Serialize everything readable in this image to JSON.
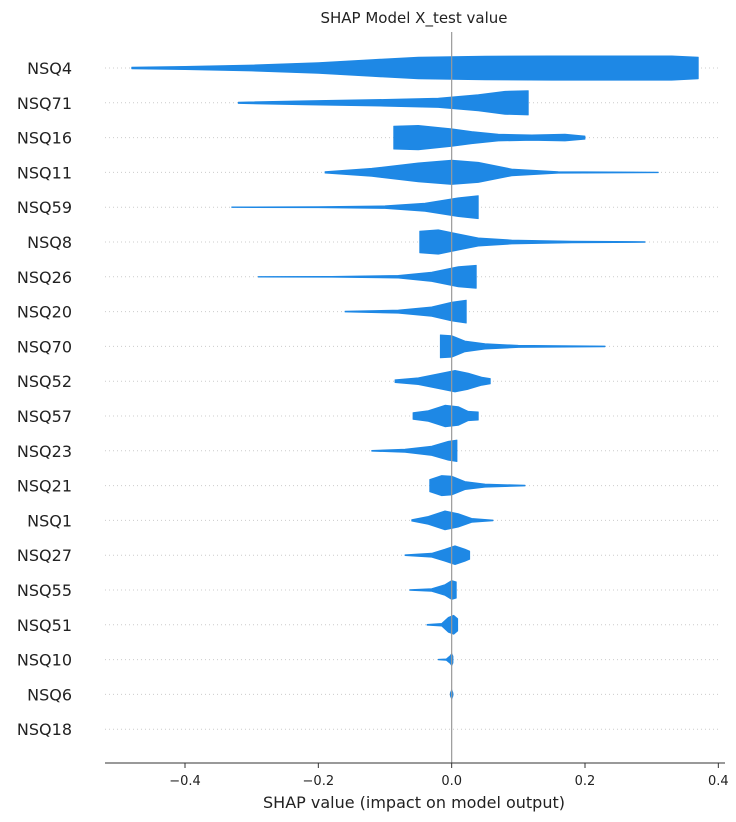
{
  "chart_data": {
    "type": "violin",
    "title": "SHAP Model X_test value",
    "xlabel": "SHAP value (impact on model output)",
    "ylabel": "",
    "xlim": [
      -0.52,
      0.41
    ],
    "xticks": [
      -0.4,
      -0.2,
      0.0,
      0.2,
      0.4
    ],
    "xtick_labels": [
      "−0.4",
      "−0.2",
      "0.0",
      "0.2",
      "0.4"
    ],
    "grid": "dotted horizontal lines",
    "colors": {
      "violin": "#1E88E5",
      "zero_line": "#999999",
      "axis": "#333333"
    },
    "features": [
      {
        "name": "NSQ4",
        "min": -0.48,
        "max": 0.37,
        "profile": [
          [
            -0.48,
            0.06
          ],
          [
            -0.4,
            0.12
          ],
          [
            -0.3,
            0.22
          ],
          [
            -0.2,
            0.4
          ],
          [
            -0.12,
            0.62
          ],
          [
            -0.05,
            0.8
          ],
          [
            0.05,
            0.88
          ],
          [
            0.15,
            0.9
          ],
          [
            0.25,
            0.9
          ],
          [
            0.33,
            0.9
          ],
          [
            0.37,
            0.8
          ]
        ]
      },
      {
        "name": "NSQ71",
        "min": -0.32,
        "max": 0.115,
        "profile": [
          [
            -0.32,
            0.05
          ],
          [
            -0.22,
            0.15
          ],
          [
            -0.1,
            0.25
          ],
          [
            -0.02,
            0.35
          ],
          [
            0.04,
            0.6
          ],
          [
            0.08,
            0.85
          ],
          [
            0.115,
            0.9
          ]
        ]
      },
      {
        "name": "NSQ16",
        "min": -0.087,
        "max": 0.2,
        "profile": [
          [
            -0.087,
            0.85
          ],
          [
            -0.05,
            0.9
          ],
          [
            0.0,
            0.65
          ],
          [
            0.03,
            0.45
          ],
          [
            0.07,
            0.25
          ],
          [
            0.12,
            0.2
          ],
          [
            0.17,
            0.25
          ],
          [
            0.2,
            0.12
          ]
        ]
      },
      {
        "name": "NSQ11",
        "min": -0.19,
        "max": 0.31,
        "profile": [
          [
            -0.19,
            0.05
          ],
          [
            -0.12,
            0.3
          ],
          [
            -0.05,
            0.7
          ],
          [
            0.0,
            0.9
          ],
          [
            0.04,
            0.75
          ],
          [
            0.09,
            0.25
          ],
          [
            0.16,
            0.06
          ],
          [
            0.31,
            0.02
          ]
        ]
      },
      {
        "name": "NSQ59",
        "min": -0.33,
        "max": 0.04,
        "profile": [
          [
            -0.33,
            0.02
          ],
          [
            -0.2,
            0.04
          ],
          [
            -0.1,
            0.1
          ],
          [
            -0.04,
            0.3
          ],
          [
            0.01,
            0.7
          ],
          [
            0.04,
            0.85
          ]
        ]
      },
      {
        "name": "NSQ8",
        "min": -0.048,
        "max": 0.29,
        "profile": [
          [
            -0.048,
            0.8
          ],
          [
            -0.02,
            0.9
          ],
          [
            0.01,
            0.6
          ],
          [
            0.04,
            0.3
          ],
          [
            0.09,
            0.15
          ],
          [
            0.18,
            0.06
          ],
          [
            0.29,
            0.03
          ]
        ]
      },
      {
        "name": "NSQ26",
        "min": -0.29,
        "max": 0.037,
        "profile": [
          [
            -0.29,
            0.02
          ],
          [
            -0.18,
            0.03
          ],
          [
            -0.08,
            0.1
          ],
          [
            -0.03,
            0.35
          ],
          [
            0.01,
            0.75
          ],
          [
            0.037,
            0.85
          ]
        ]
      },
      {
        "name": "NSQ20",
        "min": -0.16,
        "max": 0.022,
        "profile": [
          [
            -0.16,
            0.03
          ],
          [
            -0.08,
            0.12
          ],
          [
            -0.03,
            0.35
          ],
          [
            0.0,
            0.7
          ],
          [
            0.022,
            0.85
          ]
        ]
      },
      {
        "name": "NSQ70",
        "min": -0.017,
        "max": 0.23,
        "profile": [
          [
            -0.017,
            0.85
          ],
          [
            0.0,
            0.8
          ],
          [
            0.02,
            0.4
          ],
          [
            0.05,
            0.2
          ],
          [
            0.1,
            0.08
          ],
          [
            0.23,
            0.03
          ]
        ]
      },
      {
        "name": "NSQ52",
        "min": -0.085,
        "max": 0.058,
        "profile": [
          [
            -0.085,
            0.1
          ],
          [
            -0.05,
            0.25
          ],
          [
            -0.02,
            0.55
          ],
          [
            0.005,
            0.8
          ],
          [
            0.025,
            0.6
          ],
          [
            0.045,
            0.3
          ],
          [
            0.058,
            0.2
          ]
        ]
      },
      {
        "name": "NSQ57",
        "min": -0.058,
        "max": 0.04,
        "profile": [
          [
            -0.058,
            0.25
          ],
          [
            -0.035,
            0.4
          ],
          [
            -0.01,
            0.8
          ],
          [
            0.01,
            0.7
          ],
          [
            0.025,
            0.35
          ],
          [
            0.04,
            0.3
          ]
        ]
      },
      {
        "name": "NSQ23",
        "min": -0.12,
        "max": 0.008,
        "profile": [
          [
            -0.12,
            0.03
          ],
          [
            -0.07,
            0.12
          ],
          [
            -0.03,
            0.35
          ],
          [
            -0.005,
            0.7
          ],
          [
            0.008,
            0.8
          ]
        ]
      },
      {
        "name": "NSQ21",
        "min": -0.033,
        "max": 0.11,
        "profile": [
          [
            -0.033,
            0.45
          ],
          [
            -0.015,
            0.75
          ],
          [
            0.0,
            0.7
          ],
          [
            0.02,
            0.3
          ],
          [
            0.05,
            0.12
          ],
          [
            0.11,
            0.03
          ]
        ]
      },
      {
        "name": "NSQ1",
        "min": -0.06,
        "max": 0.062,
        "profile": [
          [
            -0.06,
            0.05
          ],
          [
            -0.035,
            0.3
          ],
          [
            -0.01,
            0.7
          ],
          [
            0.01,
            0.5
          ],
          [
            0.03,
            0.15
          ],
          [
            0.062,
            0.03
          ]
        ]
      },
      {
        "name": "NSQ27",
        "min": -0.07,
        "max": 0.027,
        "profile": [
          [
            -0.07,
            0.03
          ],
          [
            -0.03,
            0.15
          ],
          [
            -0.01,
            0.45
          ],
          [
            0.005,
            0.7
          ],
          [
            0.02,
            0.45
          ],
          [
            0.027,
            0.3
          ]
        ]
      },
      {
        "name": "NSQ55",
        "min": -0.063,
        "max": 0.007,
        "profile": [
          [
            -0.063,
            0.03
          ],
          [
            -0.03,
            0.1
          ],
          [
            -0.01,
            0.4
          ],
          [
            0.0,
            0.7
          ],
          [
            0.007,
            0.6
          ]
        ]
      },
      {
        "name": "NSQ51",
        "min": -0.037,
        "max": 0.009,
        "profile": [
          [
            -0.037,
            0.03
          ],
          [
            -0.015,
            0.1
          ],
          [
            -0.005,
            0.55
          ],
          [
            0.003,
            0.7
          ],
          [
            0.009,
            0.45
          ]
        ]
      },
      {
        "name": "NSQ10",
        "min": -0.02,
        "max": 0.002,
        "profile": [
          [
            -0.02,
            0.02
          ],
          [
            -0.008,
            0.05
          ],
          [
            -0.002,
            0.3
          ],
          [
            0.0,
            0.45
          ],
          [
            0.002,
            0.25
          ]
        ]
      },
      {
        "name": "NSQ6",
        "min": -0.002,
        "max": 0.002,
        "profile": [
          [
            -0.002,
            0.1
          ],
          [
            0.0,
            0.35
          ],
          [
            0.002,
            0.1
          ]
        ]
      },
      {
        "name": "NSQ18",
        "min": 0.0,
        "max": 0.0,
        "profile": []
      }
    ]
  }
}
